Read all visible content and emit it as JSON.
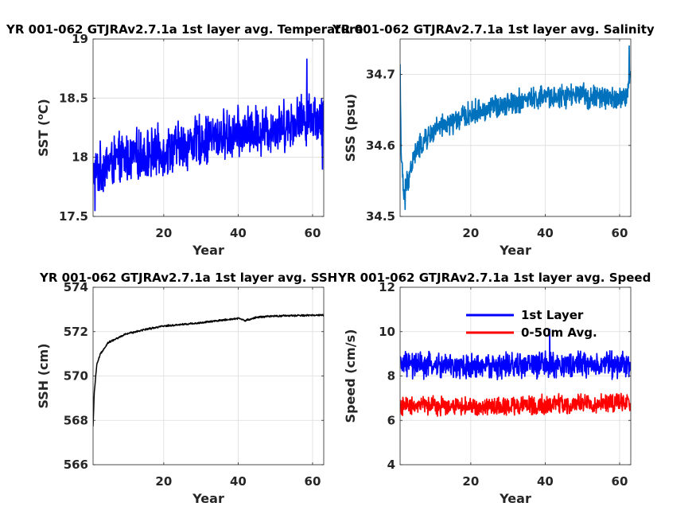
{
  "chart_data": [
    {
      "type": "line",
      "title": "YR 001-062 GTJRAv2.7.1a 1st layer avg. Temperature",
      "xlabel": "Year",
      "ylabel": "SST (",
      "ylabel_sup": "o",
      "ylabel_unit": "C)",
      "xlim": [
        1,
        63
      ],
      "ylim": [
        17.5,
        19
      ],
      "xticks": [
        20,
        40,
        60
      ],
      "yticks": [
        17.5,
        18,
        18.5,
        19
      ],
      "grid": true,
      "color": "#0000ff",
      "series": [
        {
          "trend": [
            [
              1,
              17.85
            ],
            [
              5,
              17.95
            ],
            [
              10,
              18.0
            ],
            [
              20,
              18.05
            ],
            [
              30,
              18.15
            ],
            [
              40,
              18.2
            ],
            [
              50,
              18.25
            ],
            [
              55,
              18.3
            ],
            [
              60,
              18.35
            ],
            [
              63,
              18.3
            ]
          ],
          "amplitude": 0.25,
          "extra_points": [
            [
              1.5,
              17.55
            ],
            [
              58.5,
              18.83
            ],
            [
              62.7,
              17.9
            ]
          ]
        }
      ]
    },
    {
      "type": "line",
      "title": "YR 001-062 GTJRAv2.7.1a 1st layer avg. Salinity",
      "xlabel": "Year",
      "ylabel": "SSS (psu)",
      "xlim": [
        1,
        63
      ],
      "ylim": [
        34.5,
        34.75
      ],
      "xticks": [
        20,
        40,
        60
      ],
      "yticks": [
        34.5,
        34.6,
        34.7
      ],
      "grid": true,
      "color": "#0072bd",
      "series": [
        {
          "trend": [
            [
              1,
              34.71
            ],
            [
              1.3,
              34.58
            ],
            [
              2,
              34.53
            ],
            [
              3,
              34.55
            ],
            [
              5,
              34.59
            ],
            [
              10,
              34.62
            ],
            [
              20,
              34.645
            ],
            [
              30,
              34.66
            ],
            [
              40,
              34.668
            ],
            [
              50,
              34.67
            ],
            [
              60,
              34.665
            ],
            [
              62,
              34.67
            ],
            [
              63,
              34.7
            ]
          ],
          "amplitude": 0.02,
          "extra_points": [
            [
              2.3,
              34.51
            ],
            [
              62.6,
              34.74
            ]
          ]
        }
      ]
    },
    {
      "type": "line",
      "title": "YR 001-062 GTJRAv2.7.1a 1st layer avg. SSH",
      "xlabel": "Year",
      "ylabel": "SSH (cm)",
      "xlim": [
        1,
        63
      ],
      "ylim": [
        566,
        574
      ],
      "xticks": [
        20,
        40,
        60
      ],
      "yticks": [
        566,
        568,
        570,
        572,
        574
      ],
      "grid": true,
      "color": "#000000",
      "series": [
        {
          "trend": [
            [
              1,
              567.7
            ],
            [
              1.3,
              569.2
            ],
            [
              2,
              570.5
            ],
            [
              3,
              571.0
            ],
            [
              5,
              571.5
            ],
            [
              10,
              571.9
            ],
            [
              15,
              572.1
            ],
            [
              20,
              572.25
            ],
            [
              30,
              572.4
            ],
            [
              40,
              572.6
            ],
            [
              42,
              572.5
            ],
            [
              45,
              572.65
            ],
            [
              50,
              572.7
            ],
            [
              63,
              572.75
            ]
          ],
          "amplitude": 0.05
        }
      ]
    },
    {
      "type": "line",
      "title": "YR 001-062 GTJRAv2.7.1a 1st layer avg. Speed",
      "xlabel": "Year",
      "ylabel": "Speed (cm/s)",
      "xlim": [
        1,
        63
      ],
      "ylim": [
        4,
        12
      ],
      "xticks": [
        20,
        40,
        60
      ],
      "yticks": [
        4,
        6,
        8,
        10,
        12
      ],
      "grid": true,
      "legend": "top-right",
      "series": [
        {
          "name": "1st Layer",
          "color": "#0000ff",
          "trend": [
            [
              1,
              8.5
            ],
            [
              20,
              8.4
            ],
            [
              40,
              8.5
            ],
            [
              63,
              8.5
            ]
          ],
          "amplitude": 0.7,
          "extra_points": [
            [
              41.2,
              10.1
            ]
          ]
        },
        {
          "name": "0-50m Avg.",
          "color": "#ff0000",
          "trend": [
            [
              1,
              6.7
            ],
            [
              20,
              6.6
            ],
            [
              40,
              6.7
            ],
            [
              63,
              6.8
            ]
          ],
          "amplitude": 0.5
        }
      ]
    }
  ]
}
